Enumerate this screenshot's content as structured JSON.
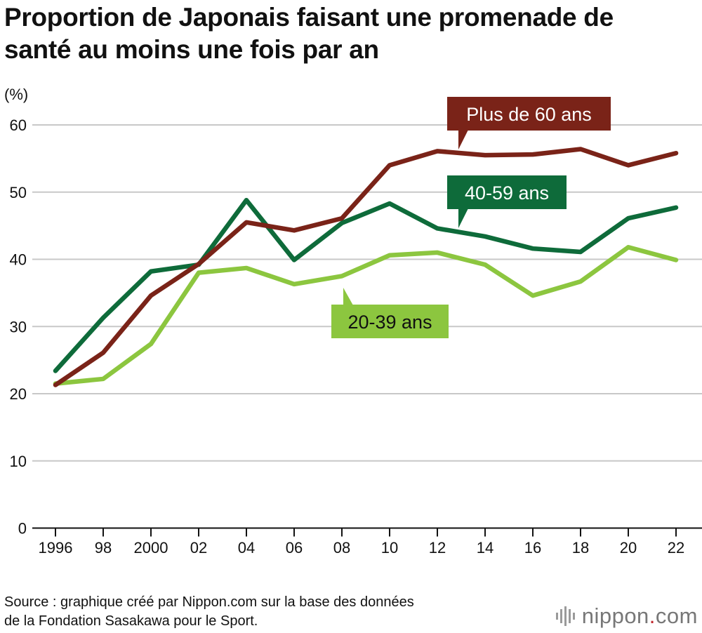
{
  "title": {
    "line1": "Proportion de Japonais faisant une promenade de",
    "line2": "santé au moins une fois par an"
  },
  "chart_data": {
    "type": "line",
    "title": "Proportion de Japonais faisant une promenade de santé au moins une fois par an",
    "ylabel": "(%)",
    "xlabel": "",
    "ylim": [
      0,
      60
    ],
    "yticks": [
      0,
      10,
      20,
      30,
      40,
      50,
      60
    ],
    "categories": [
      "1996",
      "98",
      "2000",
      "02",
      "04",
      "06",
      "08",
      "10",
      "12",
      "14",
      "16",
      "18",
      "20",
      "22"
    ],
    "series": [
      {
        "name": "Plus de 60 ans",
        "color": "#7a2318",
        "values": [
          21.3,
          26.1,
          34.6,
          39.3,
          45.5,
          44.3,
          46.1,
          54.0,
          56.1,
          55.5,
          55.6,
          56.4,
          54.0,
          55.8
        ]
      },
      {
        "name": "40-59 ans",
        "color": "#0e6b3a",
        "values": [
          23.4,
          31.3,
          38.2,
          39.2,
          48.8,
          39.9,
          45.4,
          48.3,
          44.6,
          43.4,
          41.6,
          41.1,
          46.1,
          47.7
        ]
      },
      {
        "name": "20-39 ans",
        "color": "#8cc63f",
        "values": [
          21.5,
          22.2,
          27.4,
          38.0,
          38.7,
          36.3,
          37.5,
          40.6,
          41.0,
          39.2,
          34.6,
          36.7,
          41.8,
          39.9
        ]
      }
    ]
  },
  "footer": {
    "source_line1": "Source : graphique créé par Nippon.com sur la base des données",
    "source_line2": "de la Fondation Sasakawa pour le Sport.",
    "logo_text": "nippon",
    "logo_dot": ".",
    "logo_suffix": "com"
  }
}
